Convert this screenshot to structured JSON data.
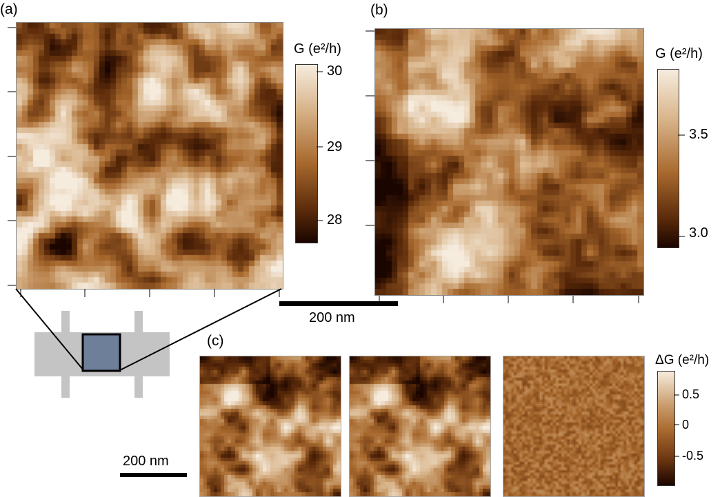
{
  "panels": {
    "a": {
      "label": "(a)",
      "colorbar": {
        "title": "G (e²/h)",
        "ticks": [
          "30",
          "29",
          "28"
        ]
      }
    },
    "b": {
      "label": "(b)",
      "colorbar": {
        "title": "G (e²/h)",
        "ticks": [
          "3.5",
          "3.0"
        ]
      }
    },
    "c": {
      "label": "(c)",
      "colorbar": {
        "title": "ΔG (e²/h)",
        "ticks": [
          "0.5",
          "0",
          "-0.5"
        ]
      }
    }
  },
  "scalebars": {
    "top": "200 nm",
    "bottom": "200 nm"
  },
  "colors": {
    "brown_dark": "#2a0f02",
    "brown_mid": "#a8692e",
    "tan_light": "#f6ecde",
    "device_gray": "#c4c4c4",
    "device_blue": "#6e7f99"
  }
}
